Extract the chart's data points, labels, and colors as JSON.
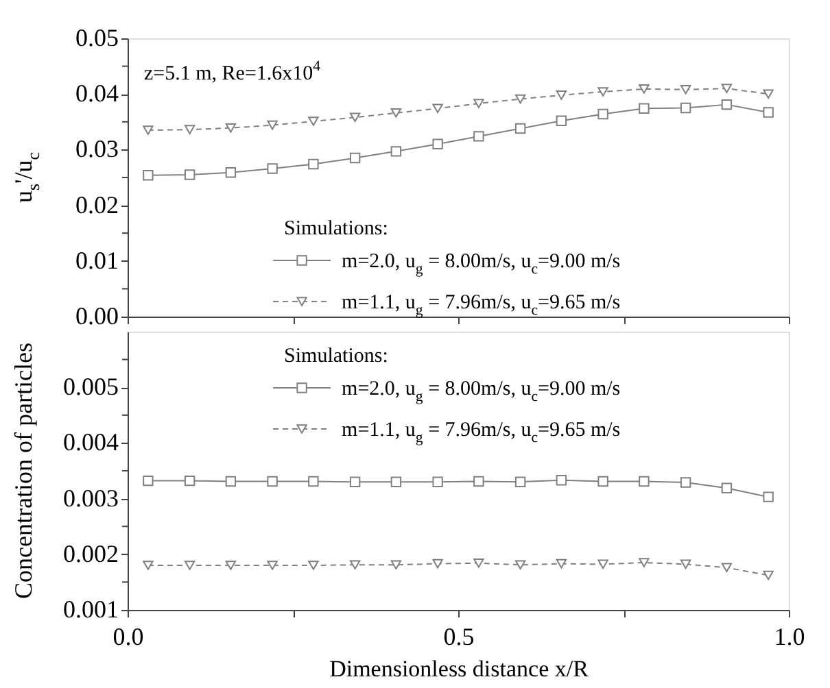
{
  "chart_data": [
    {
      "type": "line",
      "ylabel": "u$_{s}$'/u$_{c}$",
      "annotations": [
        "z=5.1 m, Re=1.6x10$^{4}$"
      ],
      "legend": "bottom",
      "legend_title": "Simulations:",
      "grid": false,
      "tick_labels": "y",
      "x": [
        0.031,
        0.094,
        0.156,
        0.219,
        0.281,
        0.344,
        0.406,
        0.469,
        0.531,
        0.594,
        0.656,
        0.719,
        0.781,
        0.844,
        0.906,
        0.969
      ],
      "xlim": [
        0,
        1
      ],
      "xticks": [
        {
          "value": 0,
          "label": null
        },
        {
          "value": 0.25,
          "label": null
        },
        {
          "value": 0.5,
          "label": null
        },
        {
          "value": 0.75,
          "label": null
        },
        {
          "value": 1,
          "label": null
        }
      ],
      "ylim": [
        0,
        0.05
      ],
      "yticks": [
        {
          "value": 0,
          "label": "0.00"
        },
        {
          "value": 0.005,
          "label": null
        },
        {
          "value": 0.01,
          "label": "0.01"
        },
        {
          "value": 0.015,
          "label": null
        },
        {
          "value": 0.02,
          "label": "0.02"
        },
        {
          "value": 0.025,
          "label": null
        },
        {
          "value": 0.03,
          "label": "0.03"
        },
        {
          "value": 0.035,
          "label": null
        },
        {
          "value": 0.04,
          "label": "0.04"
        },
        {
          "value": 0.045,
          "label": null
        },
        {
          "value": 0.05,
          "label": "0.05"
        }
      ],
      "series": [
        {
          "name": "m=2.0, u$_{g}$ = 8.00m/s, u$_{c}$=9.00 m/s",
          "color": "#808080",
          "marker": "square",
          "line_style": "solid",
          "values": [
            0.0254,
            0.0255,
            0.0259,
            0.0266,
            0.0274,
            0.0285,
            0.0297,
            0.031,
            0.0324,
            0.0338,
            0.0352,
            0.0364,
            0.0374,
            0.0375,
            0.0381,
            0.0367
          ]
        },
        {
          "name": "m=1.1, u$_{g}$ = 7.96m/s, u$_{c}$=9.65 m/s",
          "color": "#808080",
          "marker": "triangle",
          "line_style": "dashed",
          "values": [
            0.0335,
            0.0336,
            0.0339,
            0.0344,
            0.0351,
            0.0358,
            0.0366,
            0.0374,
            0.0383,
            0.0391,
            0.0398,
            0.0404,
            0.0409,
            0.0408,
            0.041,
            0.04
          ]
        }
      ]
    },
    {
      "type": "line",
      "ylabel": "Concentration of particles",
      "xlabel": "Dimensionless distance x/R",
      "legend": "top",
      "legend_title": "Simulations:",
      "grid": false,
      "x": [
        0.031,
        0.094,
        0.156,
        0.219,
        0.281,
        0.344,
        0.406,
        0.469,
        0.531,
        0.594,
        0.656,
        0.719,
        0.781,
        0.844,
        0.906,
        0.969
      ],
      "xlim": [
        0,
        1
      ],
      "xticks": [
        {
          "value": 0,
          "label": "0.0"
        },
        {
          "value": 0.25,
          "label": null
        },
        {
          "value": 0.5,
          "label": "0.5"
        },
        {
          "value": 0.75,
          "label": null
        },
        {
          "value": 1,
          "label": "1.0"
        }
      ],
      "ylim": [
        0.001,
        0.006
      ],
      "yticks": [
        {
          "value": 0.001,
          "label": "0.001"
        },
        {
          "value": 0.0015,
          "label": null
        },
        {
          "value": 0.002,
          "label": "0.002"
        },
        {
          "value": 0.0025,
          "label": null
        },
        {
          "value": 0.003,
          "label": "0.003"
        },
        {
          "value": 0.0035,
          "label": null
        },
        {
          "value": 0.004,
          "label": "0.004"
        },
        {
          "value": 0.0045,
          "label": null
        },
        {
          "value": 0.005,
          "label": "0.005"
        },
        {
          "value": 0.0055,
          "label": null
        }
      ],
      "series": [
        {
          "name": "m=2.0, u$_{g}$ = 8.00m/s, u$_{c}$=9.00 m/s",
          "color": "#808080",
          "marker": "square",
          "line_style": "solid",
          "values": [
            0.00332,
            0.00332,
            0.00331,
            0.00331,
            0.00331,
            0.0033,
            0.0033,
            0.0033,
            0.00331,
            0.0033,
            0.00333,
            0.00331,
            0.00331,
            0.00329,
            0.00319,
            0.00303
          ]
        },
        {
          "name": "m=1.1, u$_{g}$ = 7.96m/s, u$_{c}$=9.65 m/s",
          "color": "#808080",
          "marker": "triangle",
          "line_style": "dashed",
          "values": [
            0.0018,
            0.0018,
            0.0018,
            0.0018,
            0.0018,
            0.00181,
            0.00181,
            0.00183,
            0.00184,
            0.00181,
            0.00183,
            0.00182,
            0.00185,
            0.00182,
            0.00176,
            0.00162
          ]
        }
      ]
    }
  ]
}
